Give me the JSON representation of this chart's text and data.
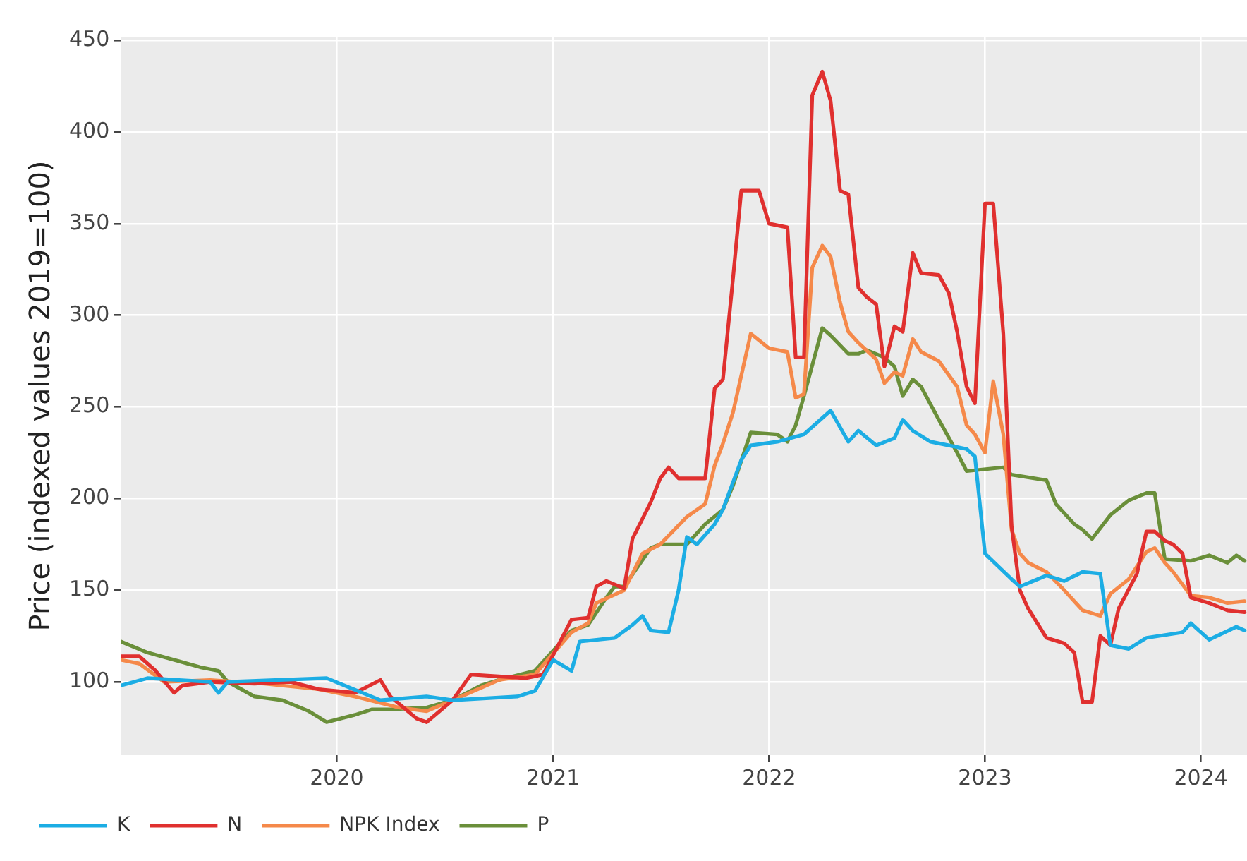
{
  "chart_data": {
    "type": "line",
    "ylabel": "Price (indexed values 2019=100)",
    "xlim": [
      "2019-01-01",
      "2024-03-19"
    ],
    "xticks": [
      "2020",
      "2021",
      "2022",
      "2023",
      "2024"
    ],
    "ylim": [
      60,
      452
    ],
    "yticks": [
      100,
      150,
      200,
      250,
      300,
      350,
      400,
      450
    ],
    "grid": true,
    "legend": "bottom left",
    "marker": "none",
    "line_style": "solid",
    "series": [
      {
        "name": "K",
        "color": "#1cade4",
        "x": [
          "2019-01-01",
          "2019-02-15",
          "2019-06-01",
          "2019-06-15",
          "2019-07-01",
          "2019-12-15",
          "2020-03-15",
          "2020-06-01",
          "2020-07-15",
          "2020-11-01",
          "2020-12-01",
          "2021-01-01",
          "2021-02-01",
          "2021-02-15",
          "2021-04-15",
          "2021-05-15",
          "2021-06-01",
          "2021-06-15",
          "2021-07-15",
          "2021-08-01",
          "2021-08-15",
          "2021-09-01",
          "2021-10-01",
          "2021-10-15",
          "2021-11-15",
          "2021-12-01",
          "2022-01-15",
          "2022-03-01",
          "2022-04-15",
          "2022-05-15",
          "2022-06-01",
          "2022-07-01",
          "2022-08-01",
          "2022-08-15",
          "2022-09-01",
          "2022-10-01",
          "2022-11-01",
          "2022-12-01",
          "2022-12-15",
          "2023-01-01",
          "2023-02-15",
          "2023-03-01",
          "2023-04-15",
          "2023-05-15",
          "2023-06-15",
          "2023-07-15",
          "2023-08-01",
          "2023-09-01",
          "2023-10-01",
          "2023-12-01",
          "2023-12-15",
          "2024-01-15",
          "2024-03-01",
          "2024-03-15"
        ],
        "values": [
          98,
          102,
          100,
          94,
          100,
          102,
          90,
          92,
          90,
          92,
          95,
          112,
          106,
          122,
          124,
          131,
          136,
          128,
          127,
          150,
          179,
          175,
          186,
          194,
          221,
          229,
          231,
          235,
          248,
          231,
          237,
          229,
          233,
          243,
          237,
          231,
          229,
          227,
          223,
          170,
          156,
          152,
          158,
          155,
          160,
          159,
          120,
          118,
          124,
          127,
          132,
          123,
          130,
          128
        ]
      },
      {
        "name": "N",
        "color": "#e0302f",
        "x": [
          "2019-01-01",
          "2019-02-01",
          "2019-03-01",
          "2019-04-01",
          "2019-04-15",
          "2019-06-01",
          "2019-08-15",
          "2019-10-15",
          "2019-12-01",
          "2020-02-01",
          "2020-03-15",
          "2020-04-01",
          "2020-05-15",
          "2020-06-01",
          "2020-07-15",
          "2020-08-15",
          "2020-10-01",
          "2020-11-15",
          "2020-12-15",
          "2021-02-01",
          "2021-03-01",
          "2021-03-15",
          "2021-04-01",
          "2021-05-01",
          "2021-05-15",
          "2021-06-15",
          "2021-07-01",
          "2021-07-15",
          "2021-08-01",
          "2021-09-15",
          "2021-10-01",
          "2021-10-15",
          "2021-11-01",
          "2021-11-15",
          "2021-12-15",
          "2022-01-01",
          "2022-02-01",
          "2022-02-15",
          "2022-03-01",
          "2022-03-15",
          "2022-04-01",
          "2022-04-15",
          "2022-05-01",
          "2022-05-15",
          "2022-06-01",
          "2022-06-15",
          "2022-07-01",
          "2022-07-15",
          "2022-08-01",
          "2022-08-15",
          "2022-09-01",
          "2022-09-15",
          "2022-10-15",
          "2022-11-01",
          "2022-11-15",
          "2022-12-01",
          "2022-12-15",
          "2023-01-01",
          "2023-01-15",
          "2023-02-01",
          "2023-02-15",
          "2023-03-01",
          "2023-03-15",
          "2023-04-15",
          "2023-05-15",
          "2023-06-01",
          "2023-06-15",
          "2023-07-01",
          "2023-07-15",
          "2023-08-01",
          "2023-08-15",
          "2023-09-15",
          "2023-10-01",
          "2023-10-15",
          "2023-11-01",
          "2023-11-15",
          "2023-12-01",
          "2023-12-15",
          "2024-01-15",
          "2024-02-15",
          "2024-03-15"
        ],
        "values": [
          114,
          114,
          106,
          94,
          98,
          100,
          99,
          100,
          96,
          94,
          101,
          92,
          80,
          78,
          90,
          104,
          103,
          102,
          104,
          134,
          135,
          152,
          155,
          151,
          178,
          198,
          211,
          217,
          211,
          211,
          260,
          265,
          320,
          368,
          368,
          350,
          348,
          277,
          277,
          420,
          433,
          417,
          368,
          366,
          315,
          310,
          306,
          272,
          294,
          291,
          334,
          323,
          322,
          312,
          291,
          261,
          252,
          361,
          361,
          290,
          185,
          150,
          140,
          124,
          121,
          116,
          89,
          89,
          125,
          120,
          140,
          159,
          182,
          182,
          177,
          175,
          170,
          146,
          143,
          139,
          138
        ]
      },
      {
        "name": "NPK Index",
        "color": "#f5894a",
        "x": [
          "2019-01-01",
          "2019-02-01",
          "2019-03-15",
          "2019-06-01",
          "2019-09-01",
          "2019-12-01",
          "2020-02-01",
          "2020-04-15",
          "2020-06-01",
          "2020-07-15",
          "2020-10-01",
          "2020-12-01",
          "2021-02-01",
          "2021-03-01",
          "2021-03-15",
          "2021-05-01",
          "2021-06-01",
          "2021-07-01",
          "2021-08-15",
          "2021-09-15",
          "2021-10-01",
          "2021-10-15",
          "2021-11-01",
          "2021-12-01",
          "2022-01-01",
          "2022-02-01",
          "2022-02-15",
          "2022-03-01",
          "2022-03-15",
          "2022-04-01",
          "2022-04-15",
          "2022-05-01",
          "2022-05-15",
          "2022-06-01",
          "2022-07-01",
          "2022-07-15",
          "2022-08-01",
          "2022-08-15",
          "2022-09-01",
          "2022-09-15",
          "2022-10-15",
          "2022-11-15",
          "2022-12-01",
          "2022-12-15",
          "2023-01-01",
          "2023-01-15",
          "2023-02-01",
          "2023-02-15",
          "2023-03-01",
          "2023-03-15",
          "2023-04-15",
          "2023-05-15",
          "2023-06-15",
          "2023-07-15",
          "2023-08-01",
          "2023-09-01",
          "2023-10-01",
          "2023-10-15",
          "2023-11-01",
          "2023-11-15",
          "2023-12-15",
          "2024-01-15",
          "2024-02-15",
          "2024-03-15"
        ],
        "values": [
          112,
          110,
          100,
          101,
          99,
          96,
          92,
          86,
          84,
          90,
          101,
          104,
          127,
          132,
          143,
          150,
          170,
          175,
          190,
          197,
          218,
          230,
          247,
          290,
          282,
          280,
          255,
          257,
          326,
          338,
          332,
          307,
          291,
          285,
          276,
          263,
          269,
          267,
          287,
          280,
          275,
          261,
          240,
          235,
          225,
          264,
          235,
          183,
          170,
          165,
          160,
          150,
          139,
          136,
          148,
          156,
          171,
          173,
          165,
          160,
          147,
          146,
          143,
          144
        ]
      },
      {
        "name": "P",
        "color": "#6a8f3a",
        "x": [
          "2019-01-01",
          "2019-02-15",
          "2019-04-01",
          "2019-05-15",
          "2019-06-15",
          "2019-07-01",
          "2019-08-15",
          "2019-10-01",
          "2019-11-15",
          "2019-12-15",
          "2020-02-01",
          "2020-03-01",
          "2020-04-01",
          "2020-06-01",
          "2020-07-15",
          "2020-09-01",
          "2020-10-01",
          "2020-12-01",
          "2021-02-01",
          "2021-03-01",
          "2021-04-01",
          "2021-04-15",
          "2021-05-01",
          "2021-06-15",
          "2021-07-01",
          "2021-08-15",
          "2021-09-15",
          "2021-10-15",
          "2021-11-01",
          "2021-12-01",
          "2022-01-15",
          "2022-02-01",
          "2022-02-15",
          "2022-03-01",
          "2022-04-01",
          "2022-04-15",
          "2022-05-15",
          "2022-06-01",
          "2022-06-15",
          "2022-07-15",
          "2022-08-01",
          "2022-08-15",
          "2022-09-01",
          "2022-09-15",
          "2022-10-15",
          "2022-11-15",
          "2022-12-01",
          "2023-02-01",
          "2023-02-15",
          "2023-04-15",
          "2023-05-01",
          "2023-06-01",
          "2023-06-15",
          "2023-07-01",
          "2023-08-01",
          "2023-09-01",
          "2023-10-01",
          "2023-10-15",
          "2023-11-01",
          "2023-12-15",
          "2024-01-15",
          "2024-02-15",
          "2024-03-01",
          "2024-03-15"
        ],
        "values": [
          122,
          116,
          112,
          108,
          106,
          100,
          92,
          90,
          84,
          78,
          82,
          85,
          85,
          86,
          90,
          98,
          101,
          106,
          128,
          131,
          146,
          152,
          152,
          173,
          175,
          175,
          186,
          194,
          207,
          236,
          235,
          231,
          240,
          256,
          293,
          289,
          279,
          279,
          281,
          277,
          272,
          256,
          265,
          261,
          243,
          225,
          215,
          217,
          213,
          210,
          197,
          186,
          183,
          178,
          191,
          199,
          203,
          203,
          167,
          166,
          169,
          165,
          169,
          166
        ]
      }
    ]
  }
}
